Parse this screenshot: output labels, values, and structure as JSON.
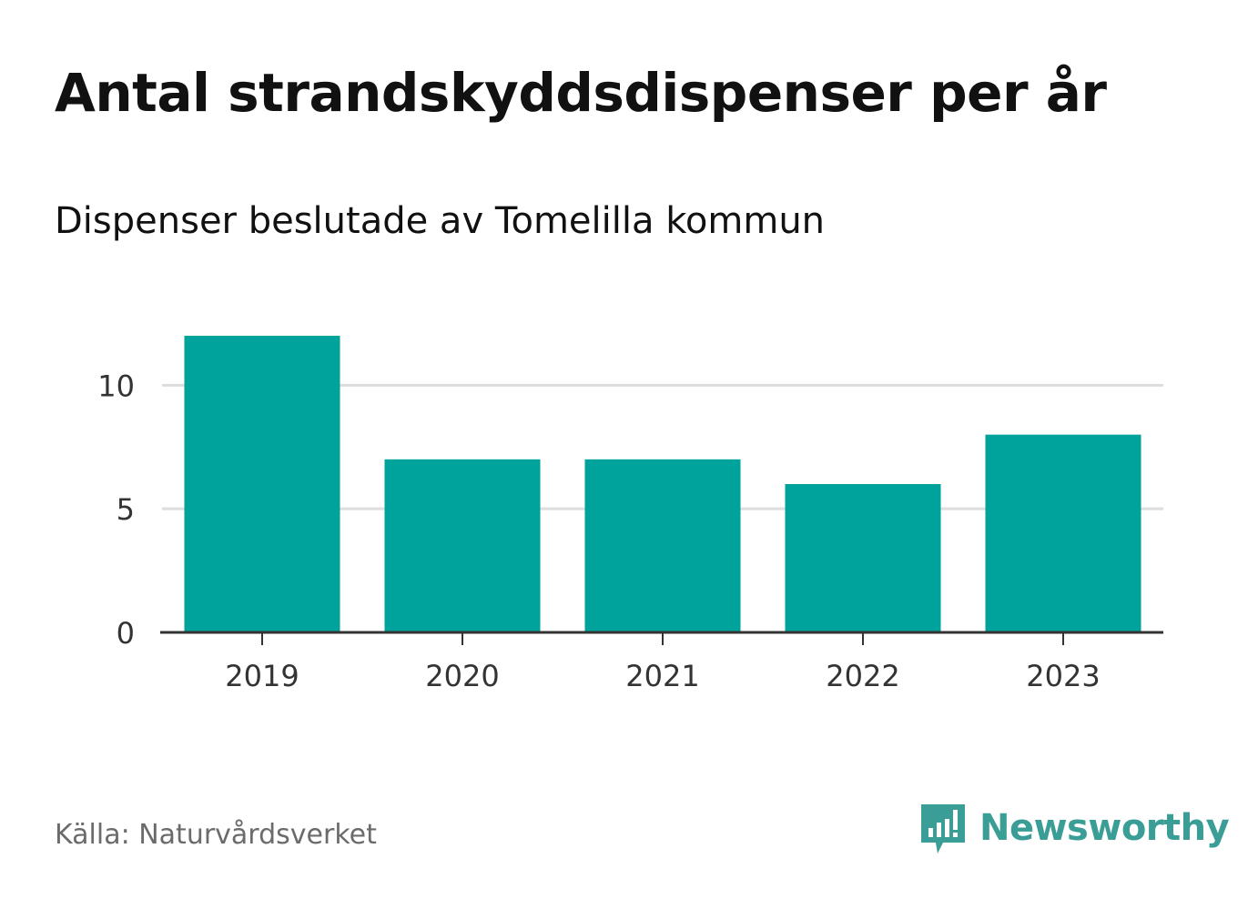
{
  "title": "Antal strandskyddsdispenser per år",
  "subtitle": "Dispenser beslutade av Tomelilla kommun",
  "source": "Källa: Naturvårdsverket",
  "brand": {
    "name": "Newsworthy",
    "icon": "newsworthy-logo-icon",
    "color": "#3a9d96"
  },
  "colors": {
    "bar": "#00a39b",
    "grid": "#dddddd",
    "axis": "#333333",
    "tick_text": "#333333"
  },
  "chart_data": {
    "type": "bar",
    "title": "Antal strandskyddsdispenser per år",
    "subtitle": "Dispenser beslutade av Tomelilla kommun",
    "categories": [
      "2019",
      "2020",
      "2021",
      "2022",
      "2023"
    ],
    "values": [
      12,
      7,
      7,
      6,
      8
    ],
    "xlabel": "",
    "ylabel": "",
    "ylim": [
      0,
      12
    ],
    "yticks": [
      "0",
      "5",
      "10"
    ],
    "grid": true
  }
}
